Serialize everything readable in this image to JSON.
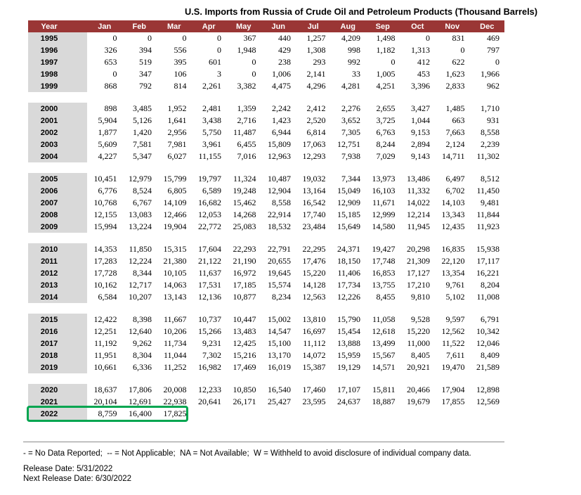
{
  "title": "U.S. Imports from Russia of Crude Oil and Petroleum Products (Thousand Barrels)",
  "colors": {
    "header_bg": "#9a3635",
    "header_text": "#ffffff",
    "year_cell_bg": "#d9d9d9",
    "highlight_border": "#00a550"
  },
  "table": {
    "columns": [
      "Year",
      "Jan",
      "Feb",
      "Mar",
      "Apr",
      "May",
      "Jun",
      "Jul",
      "Aug",
      "Sep",
      "Oct",
      "Nov",
      "Dec"
    ],
    "highlight_year": "2022",
    "groups": [
      {
        "rows": [
          {
            "year": "1995",
            "values": [
              "0",
              "0",
              "0",
              "0",
              "367",
              "440",
              "1,257",
              "4,209",
              "1,498",
              "0",
              "831",
              "469"
            ]
          },
          {
            "year": "1996",
            "values": [
              "326",
              "394",
              "556",
              "0",
              "1,948",
              "429",
              "1,308",
              "998",
              "1,182",
              "1,313",
              "0",
              "797"
            ]
          },
          {
            "year": "1997",
            "values": [
              "653",
              "519",
              "395",
              "601",
              "0",
              "238",
              "293",
              "992",
              "0",
              "412",
              "622",
              "0"
            ]
          },
          {
            "year": "1998",
            "values": [
              "0",
              "347",
              "106",
              "3",
              "0",
              "1,006",
              "2,141",
              "33",
              "1,005",
              "453",
              "1,623",
              "1,966"
            ]
          },
          {
            "year": "1999",
            "values": [
              "868",
              "792",
              "814",
              "2,261",
              "3,382",
              "4,475",
              "4,296",
              "4,281",
              "4,251",
              "3,396",
              "2,833",
              "962"
            ]
          }
        ]
      },
      {
        "rows": [
          {
            "year": "2000",
            "values": [
              "898",
              "3,485",
              "1,952",
              "2,481",
              "1,359",
              "2,242",
              "2,412",
              "2,276",
              "2,655",
              "3,427",
              "1,485",
              "1,710"
            ]
          },
          {
            "year": "2001",
            "values": [
              "5,904",
              "5,126",
              "1,641",
              "3,438",
              "2,716",
              "1,423",
              "2,520",
              "3,652",
              "3,725",
              "1,044",
              "663",
              "931"
            ]
          },
          {
            "year": "2002",
            "values": [
              "1,877",
              "1,420",
              "2,956",
              "5,750",
              "11,487",
              "6,944",
              "6,814",
              "7,305",
              "6,763",
              "9,153",
              "7,663",
              "8,558"
            ]
          },
          {
            "year": "2003",
            "values": [
              "5,609",
              "7,581",
              "7,981",
              "3,961",
              "6,455",
              "15,809",
              "17,063",
              "12,751",
              "8,244",
              "2,894",
              "2,124",
              "2,239"
            ]
          },
          {
            "year": "2004",
            "values": [
              "4,227",
              "5,347",
              "6,027",
              "11,155",
              "7,016",
              "12,963",
              "12,293",
              "7,938",
              "7,029",
              "9,143",
              "14,711",
              "11,302"
            ]
          }
        ]
      },
      {
        "rows": [
          {
            "year": "2005",
            "values": [
              "10,451",
              "12,979",
              "15,799",
              "19,797",
              "11,324",
              "10,487",
              "19,032",
              "7,344",
              "13,973",
              "13,486",
              "6,497",
              "8,512"
            ]
          },
          {
            "year": "2006",
            "values": [
              "6,776",
              "8,524",
              "6,805",
              "6,589",
              "19,248",
              "12,904",
              "13,164",
              "15,049",
              "16,103",
              "11,332",
              "6,702",
              "11,450"
            ]
          },
          {
            "year": "2007",
            "values": [
              "10,768",
              "6,767",
              "14,109",
              "16,682",
              "15,462",
              "8,558",
              "16,542",
              "12,909",
              "11,671",
              "14,022",
              "14,103",
              "9,481"
            ]
          },
          {
            "year": "2008",
            "values": [
              "12,155",
              "13,083",
              "12,466",
              "12,053",
              "14,268",
              "22,914",
              "17,740",
              "15,185",
              "12,999",
              "12,214",
              "13,343",
              "11,844"
            ]
          },
          {
            "year": "2009",
            "values": [
              "15,994",
              "13,224",
              "19,904",
              "22,772",
              "25,083",
              "18,532",
              "23,484",
              "15,649",
              "14,580",
              "11,945",
              "12,435",
              "11,923"
            ]
          }
        ]
      },
      {
        "rows": [
          {
            "year": "2010",
            "values": [
              "14,353",
              "11,850",
              "15,315",
              "17,604",
              "22,293",
              "22,791",
              "22,295",
              "24,371",
              "19,427",
              "20,298",
              "16,835",
              "15,938"
            ]
          },
          {
            "year": "2011",
            "values": [
              "17,283",
              "12,224",
              "21,380",
              "21,122",
              "21,190",
              "20,655",
              "17,476",
              "18,150",
              "17,748",
              "21,309",
              "22,120",
              "17,117"
            ]
          },
          {
            "year": "2012",
            "values": [
              "17,728",
              "8,344",
              "10,105",
              "11,637",
              "16,972",
              "19,645",
              "15,220",
              "11,406",
              "16,853",
              "17,127",
              "13,354",
              "16,221"
            ]
          },
          {
            "year": "2013",
            "values": [
              "10,162",
              "12,717",
              "14,063",
              "17,531",
              "17,185",
              "15,574",
              "14,128",
              "17,734",
              "13,755",
              "17,210",
              "9,761",
              "8,204"
            ]
          },
          {
            "year": "2014",
            "values": [
              "6,584",
              "10,207",
              "13,143",
              "12,136",
              "10,877",
              "8,234",
              "12,563",
              "12,226",
              "8,455",
              "9,810",
              "5,102",
              "11,008"
            ]
          }
        ]
      },
      {
        "rows": [
          {
            "year": "2015",
            "values": [
              "12,422",
              "8,398",
              "11,667",
              "10,737",
              "10,447",
              "15,002",
              "13,810",
              "15,790",
              "11,058",
              "9,528",
              "9,597",
              "6,791"
            ]
          },
          {
            "year": "2016",
            "values": [
              "12,251",
              "12,640",
              "10,206",
              "15,266",
              "13,483",
              "14,547",
              "16,697",
              "15,454",
              "12,618",
              "15,220",
              "12,562",
              "10,342"
            ]
          },
          {
            "year": "2017",
            "values": [
              "11,192",
              "9,262",
              "11,734",
              "9,231",
              "12,425",
              "15,100",
              "11,112",
              "13,888",
              "13,499",
              "11,000",
              "11,522",
              "12,046"
            ]
          },
          {
            "year": "2018",
            "values": [
              "11,951",
              "8,304",
              "11,044",
              "7,302",
              "15,216",
              "13,170",
              "14,072",
              "15,959",
              "15,567",
              "8,405",
              "7,611",
              "8,409"
            ]
          },
          {
            "year": "2019",
            "values": [
              "10,661",
              "6,336",
              "11,252",
              "16,982",
              "17,469",
              "16,019",
              "15,387",
              "19,129",
              "14,571",
              "20,921",
              "19,470",
              "21,589"
            ]
          }
        ]
      },
      {
        "rows": [
          {
            "year": "2020",
            "values": [
              "18,637",
              "17,806",
              "20,008",
              "12,233",
              "10,850",
              "16,540",
              "17,460",
              "17,107",
              "15,811",
              "20,466",
              "17,904",
              "12,898"
            ]
          },
          {
            "year": "2021",
            "values": [
              "20,104",
              "12,691",
              "22,938",
              "20,641",
              "26,171",
              "25,427",
              "23,595",
              "24,637",
              "18,887",
              "19,679",
              "17,855",
              "12,569"
            ]
          },
          {
            "year": "2022",
            "values": [
              "8,759",
              "16,400",
              "17,825",
              "",
              "",
              "",
              "",
              "",
              "",
              "",
              "",
              ""
            ]
          }
        ]
      }
    ]
  },
  "footnote": "- = No Data Reported;  -- = Not Applicable;  NA = Not Available;  W = Withheld to avoid disclosure of individual company data.",
  "release_date": "Release Date: 5/31/2022",
  "next_release_date": "Next Release Date: 6/30/2022"
}
